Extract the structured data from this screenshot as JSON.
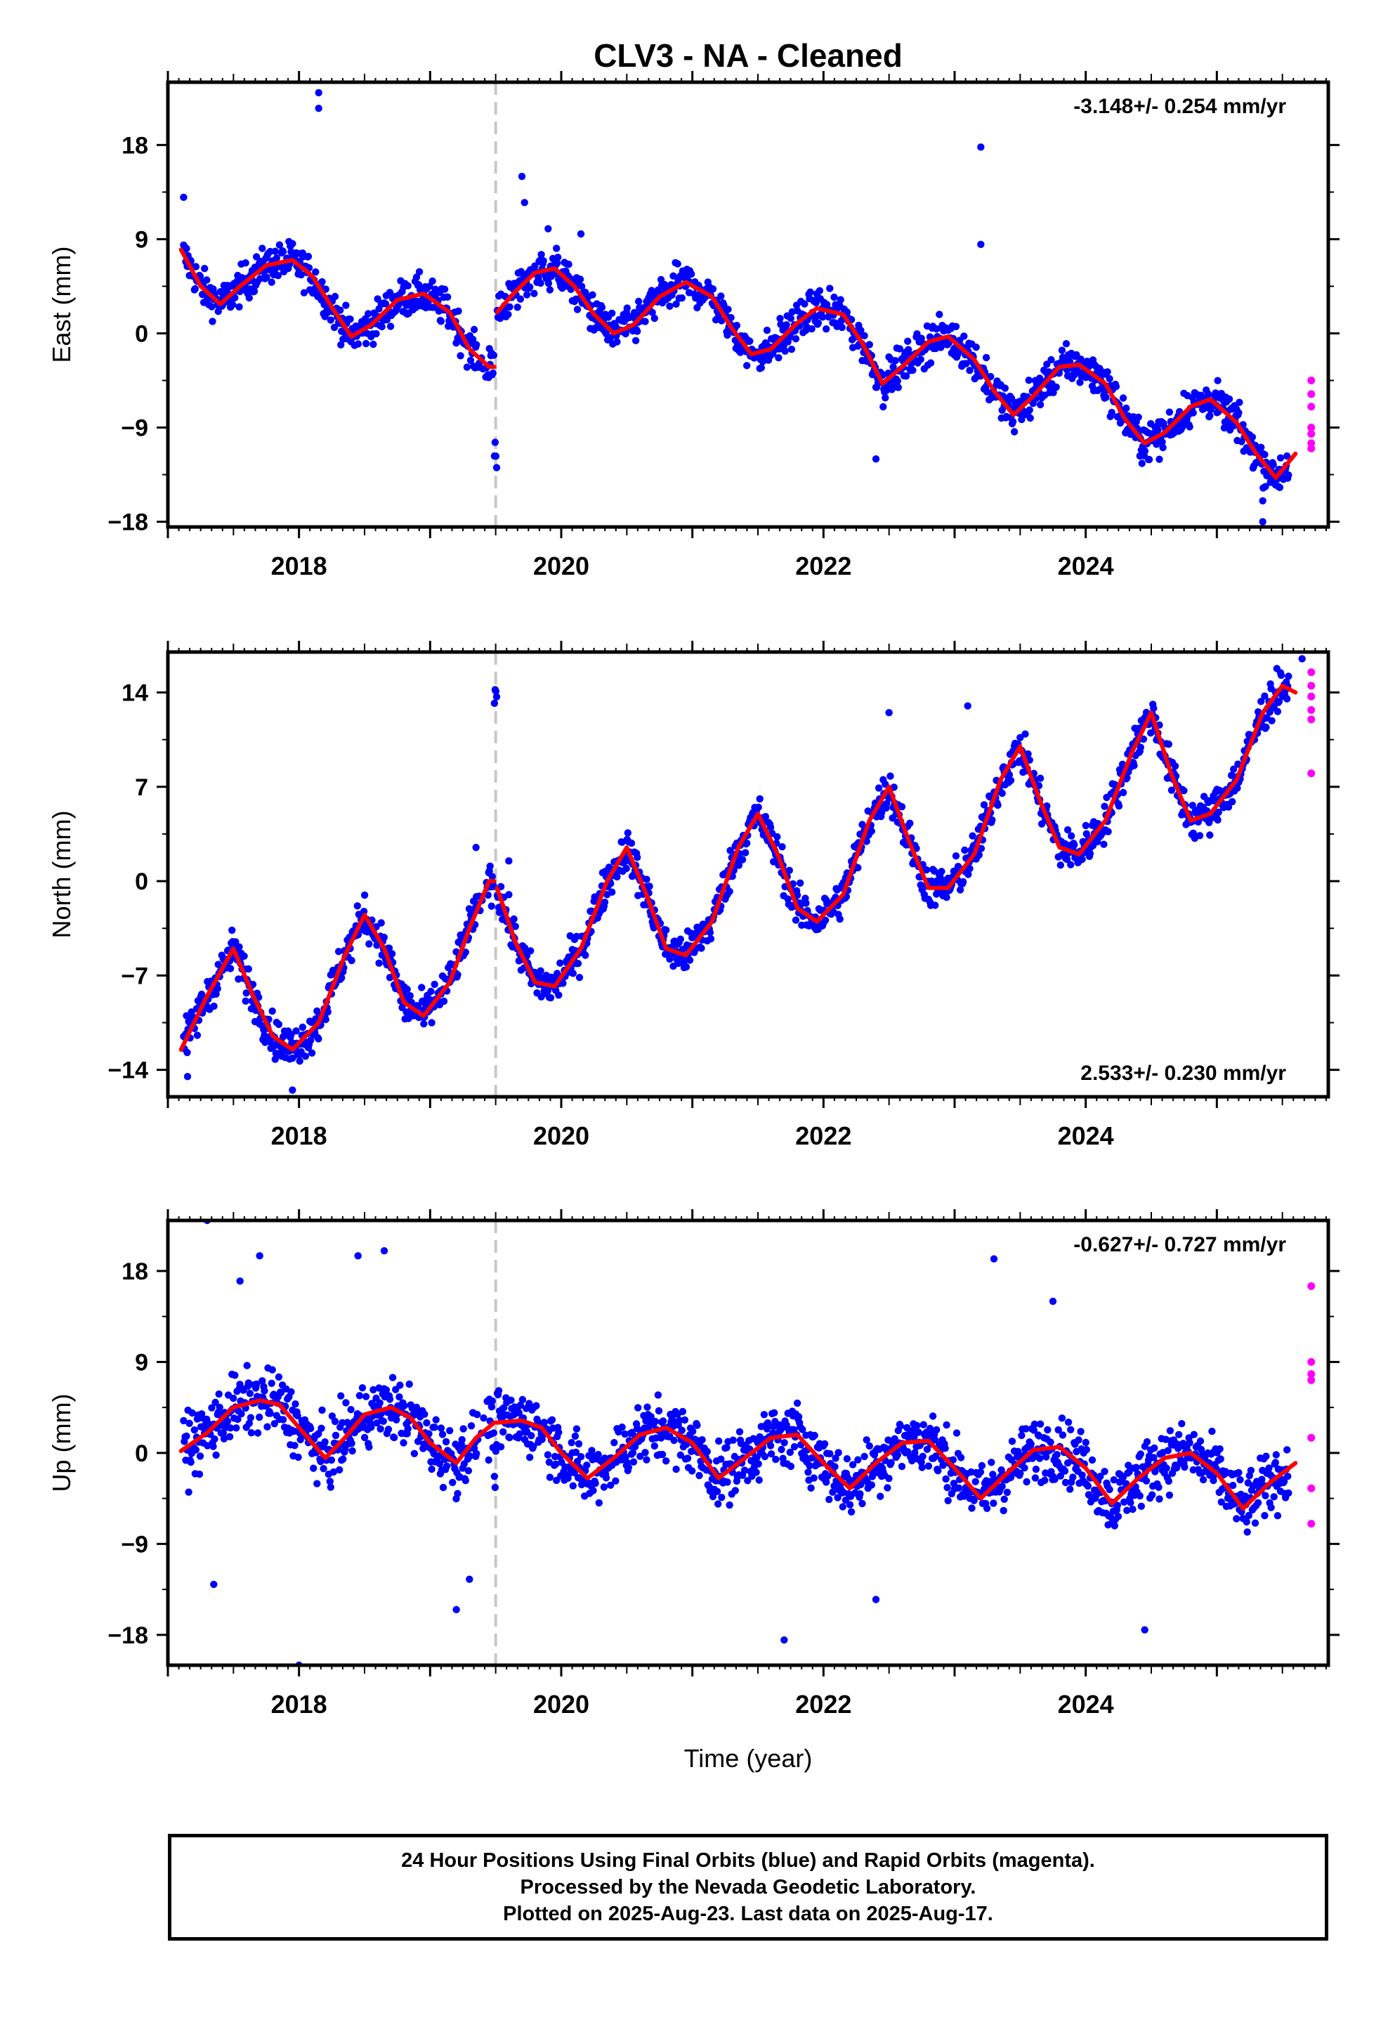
{
  "title": "CLV3  - NA - Cleaned",
  "xlabel": "Time (year)",
  "colors": {
    "final": "#0000ff",
    "rapid": "#ff00ff",
    "model": "#ff0000",
    "offset_line": "#c8c8c8"
  },
  "caption": {
    "line1": "24 Hour Positions Using Final Orbits (blue) and Rapid Orbits (magenta).",
    "line2": "Processed by the Nevada Geodetic Laboratory.",
    "line3": "Plotted on 2025-Aug-23. Last data on 2025-Aug-17."
  },
  "chart_data": [
    {
      "type": "scatter",
      "ylabel": "East (mm)",
      "xlim": [
        2017.0,
        2025.85
      ],
      "ylim": [
        -18.5,
        24
      ],
      "yticks": [
        18,
        9,
        0,
        -9,
        -18
      ],
      "ytick_labels": [
        "18",
        "9",
        "0",
        "-9",
        "-18"
      ],
      "xticks": [
        2018,
        2020,
        2022,
        2024
      ],
      "xtick_labels": [
        "2018",
        "2020",
        "2022",
        "2024"
      ],
      "rate_text": "-3.148+/- 0.254 mm/yr",
      "rate_position": "top-right",
      "offset_epoch": 2019.5,
      "series": [
        {
          "kind": "model",
          "x": [
            2017.1,
            2017.25,
            2017.4,
            2017.55,
            2017.75,
            2017.95,
            2018.1,
            2018.25,
            2018.4,
            2018.55,
            2018.75,
            2018.95,
            2019.15,
            2019.3,
            2019.45,
            2019.49
          ],
          "y": [
            8,
            4.5,
            2.8,
            4.5,
            6.5,
            7,
            5.5,
            2.5,
            -0.3,
            0.8,
            3.2,
            3.8,
            2,
            -1.5,
            -3.2,
            -3.2
          ]
        },
        {
          "kind": "model",
          "x": [
            2019.51,
            2019.65,
            2019.8,
            2019.95,
            2020.1,
            2020.25,
            2020.4,
            2020.55,
            2020.75,
            2020.95,
            2021.15,
            2021.3,
            2021.45,
            2021.6,
            2021.8,
            2021.95,
            2022.15,
            2022.3,
            2022.45,
            2022.6,
            2022.8,
            2022.95,
            2023.15,
            2023.3,
            2023.45,
            2023.6,
            2023.8,
            2023.95,
            2024.15,
            2024.3,
            2024.45,
            2024.6,
            2024.8,
            2024.95,
            2025.15,
            2025.3,
            2025.45,
            2025.6
          ],
          "y": [
            2,
            4,
            5.8,
            6.2,
            4.5,
            1.8,
            0,
            0.8,
            3.5,
            4.9,
            3.5,
            0.5,
            -2,
            -1.5,
            1,
            2.4,
            1.8,
            -1,
            -4.8,
            -3.2,
            -0.8,
            -0.3,
            -2.5,
            -5.5,
            -7.8,
            -6,
            -3.2,
            -3,
            -4.8,
            -8.2,
            -10.5,
            -9.5,
            -7,
            -6.3,
            -8.5,
            -11.5,
            -13.8,
            -11.5
          ]
        }
      ],
      "outliers": [
        [
          2017.12,
          13
        ],
        [
          2018.15,
          23
        ],
        [
          2018.15,
          21.5
        ],
        [
          2019.7,
          15
        ],
        [
          2019.72,
          12.5
        ],
        [
          2019.9,
          10
        ],
        [
          2020.15,
          9.5
        ],
        [
          2023.2,
          17.8
        ],
        [
          2023.2,
          8.5
        ],
        [
          2022.4,
          -12
        ],
        [
          2025.35,
          -16
        ],
        [
          2025.35,
          -18
        ]
      ],
      "rapid": [
        [
          2025.57,
          -4.5
        ],
        [
          2025.57,
          -5.8
        ],
        [
          2025.57,
          -7
        ],
        [
          2025.57,
          -9
        ],
        [
          2025.57,
          -9.6
        ],
        [
          2025.57,
          -10.5
        ],
        [
          2025.57,
          -11
        ]
      ]
    },
    {
      "type": "scatter",
      "ylabel": "North (mm)",
      "xlim": [
        2017.0,
        2025.85
      ],
      "ylim": [
        -16,
        17
      ],
      "yticks": [
        14,
        7,
        0,
        -7,
        -14
      ],
      "ytick_labels": [
        "14",
        "7",
        "0",
        "-7",
        "-14"
      ],
      "xticks": [
        2018,
        2020,
        2022,
        2024
      ],
      "xtick_labels": [
        "2018",
        "2020",
        "2022",
        "2024"
      ],
      "rate_text": "2.533+/- 0.230 mm/yr",
      "rate_position": "bottom-right",
      "offset_epoch": 2019.5,
      "series": [
        {
          "kind": "model",
          "x": [
            2017.1,
            2017.3,
            2017.5,
            2017.65,
            2017.8,
            2017.95,
            2018.15,
            2018.35,
            2018.5,
            2018.65,
            2018.8,
            2018.95,
            2019.15,
            2019.3,
            2019.45,
            2019.49
          ],
          "y": [
            -12.5,
            -8.5,
            -5,
            -8.5,
            -11.5,
            -12.5,
            -10.5,
            -5.5,
            -2.5,
            -5,
            -9,
            -10,
            -7.5,
            -3.5,
            0,
            0
          ]
        },
        {
          "kind": "model",
          "x": [
            2019.51,
            2019.65,
            2019.8,
            2019.95,
            2020.15,
            2020.35,
            2020.5,
            2020.65,
            2020.8,
            2020.95,
            2021.15,
            2021.35,
            2021.5,
            2021.65,
            2021.8,
            2021.95,
            2022.15,
            2022.35,
            2022.5,
            2022.65,
            2022.8,
            2022.95,
            2023.15,
            2023.35,
            2023.5,
            2023.65,
            2023.8,
            2023.95,
            2024.15,
            2024.35,
            2024.5,
            2024.65,
            2024.8,
            2024.95,
            2025.15,
            2025.35,
            2025.5,
            2025.6
          ],
          "y": [
            -0.5,
            -4.5,
            -7.5,
            -7.8,
            -5,
            0,
            2.5,
            -1,
            -5,
            -5.5,
            -3,
            2.5,
            5,
            2,
            -2,
            -3,
            -1,
            4.5,
            7,
            3,
            -0.5,
            -0.5,
            2,
            7.5,
            10,
            6,
            2.5,
            2,
            4.5,
            9.5,
            12.5,
            8,
            4.5,
            5,
            7.5,
            12.5,
            14.5,
            14
          ]
        }
      ],
      "outliers": [
        [
          2017.15,
          -14.5
        ],
        [
          2017.95,
          -15.5
        ],
        [
          2019.35,
          2.5
        ],
        [
          2019.6,
          1.5
        ],
        [
          2023.1,
          13
        ],
        [
          2025.65,
          16.5
        ],
        [
          2022.5,
          12.5
        ]
      ],
      "rapid": [
        [
          2025.57,
          15.5
        ],
        [
          2025.57,
          14.5
        ],
        [
          2025.57,
          13.7
        ],
        [
          2025.57,
          12.7
        ],
        [
          2025.57,
          12
        ],
        [
          2025.57,
          8
        ]
      ]
    },
    {
      "type": "scatter",
      "ylabel": "Up (mm)",
      "xlim": [
        2017.0,
        2025.85
      ],
      "ylim": [
        -21,
        23
      ],
      "yticks": [
        18,
        9,
        0,
        -9,
        -18
      ],
      "ytick_labels": [
        "18",
        "9",
        "0",
        "-9",
        "-18"
      ],
      "xticks": [
        2018,
        2020,
        2022,
        2024
      ],
      "xtick_labels": [
        "2018",
        "2020",
        "2022",
        "2024"
      ],
      "rate_text": "-0.627+/- 0.727 mm/yr",
      "rate_position": "top-right",
      "offset_epoch": 2019.5,
      "series": [
        {
          "kind": "model",
          "x": [
            2017.1,
            2017.3,
            2017.5,
            2017.7,
            2017.85,
            2018.0,
            2018.2,
            2018.35,
            2018.5,
            2018.7,
            2018.85,
            2019.0,
            2019.2,
            2019.35,
            2019.49
          ],
          "y": [
            0.2,
            2,
            4.5,
            5.2,
            4.8,
            2.5,
            -0.5,
            1.5,
            3.8,
            4.5,
            3.5,
            1,
            -1,
            1.5,
            3
          ]
        },
        {
          "kind": "model",
          "x": [
            2019.51,
            2019.7,
            2019.85,
            2020.0,
            2020.2,
            2020.4,
            2020.6,
            2020.8,
            2021.0,
            2021.2,
            2021.4,
            2021.6,
            2021.8,
            2022.0,
            2022.2,
            2022.4,
            2022.6,
            2022.8,
            2023.0,
            2023.2,
            2023.4,
            2023.6,
            2023.8,
            2024.0,
            2024.2,
            2024.4,
            2024.6,
            2024.8,
            2025.0,
            2025.2,
            2025.4,
            2025.6
          ],
          "y": [
            3,
            3.2,
            2.5,
            0,
            -2.5,
            -0.5,
            1.8,
            2.5,
            1,
            -2.5,
            -0.5,
            1.5,
            1.8,
            -1,
            -3.5,
            -1,
            1,
            1.2,
            -1.5,
            -4.5,
            -2,
            0.3,
            0.6,
            -1.5,
            -5,
            -2.5,
            -0.5,
            0,
            -2,
            -5.5,
            -3,
            -1
          ]
        }
      ],
      "outliers": [
        [
          2017.3,
          23
        ],
        [
          2017.55,
          17
        ],
        [
          2017.7,
          19.5
        ],
        [
          2018.45,
          19.5
        ],
        [
          2018.65,
          20
        ],
        [
          2018.0,
          -21
        ],
        [
          2021.7,
          -18.5
        ],
        [
          2022.4,
          -14.5
        ],
        [
          2017.35,
          -13
        ],
        [
          2019.2,
          -15.5
        ],
        [
          2019.3,
          -12.5
        ],
        [
          2023.3,
          19.2
        ],
        [
          2023.75,
          15
        ],
        [
          2024.45,
          -17.5
        ]
      ],
      "rapid": [
        [
          2025.57,
          16.5
        ],
        [
          2025.57,
          9
        ],
        [
          2025.57,
          7.8
        ],
        [
          2025.57,
          7.2
        ],
        [
          2025.57,
          1.5
        ],
        [
          2025.57,
          -3.5
        ],
        [
          2025.57,
          -7
        ]
      ]
    }
  ]
}
